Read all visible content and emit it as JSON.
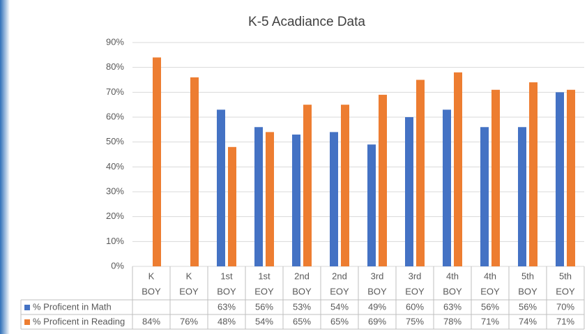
{
  "chart_data": {
    "type": "bar",
    "title": "K-5 Acadiance Data",
    "categories": [
      [
        "K",
        "BOY"
      ],
      [
        "K",
        "EOY"
      ],
      [
        "1st",
        "BOY"
      ],
      [
        "1st",
        "EOY"
      ],
      [
        "2nd",
        "BOY"
      ],
      [
        "2nd",
        "EOY"
      ],
      [
        "3rd",
        "BOY"
      ],
      [
        "3rd",
        "EOY"
      ],
      [
        "4th",
        "BOY"
      ],
      [
        "4th",
        "EOY"
      ],
      [
        "5th",
        "BOY"
      ],
      [
        "5th",
        "EOY"
      ]
    ],
    "series": [
      {
        "name": "% Proficent in Math",
        "color": "#4472c4",
        "values": [
          null,
          null,
          63,
          56,
          53,
          54,
          49,
          60,
          63,
          56,
          56,
          70
        ],
        "value_labels": [
          null,
          null,
          "63%",
          "56%",
          "53%",
          "54%",
          "49%",
          "60%",
          "63%",
          "56%",
          "56%",
          "70%"
        ]
      },
      {
        "name": "% Proficent in Reading",
        "color": "#ed7d31",
        "values": [
          84,
          76,
          48,
          54,
          65,
          65,
          69,
          75,
          78,
          71,
          74,
          71
        ],
        "value_labels": [
          "84%",
          "76%",
          "48%",
          "54%",
          "65%",
          "65%",
          "69%",
          "75%",
          "78%",
          "71%",
          "74%",
          "71%"
        ]
      }
    ],
    "ylim": [
      0,
      90
    ],
    "yticks": [
      {
        "value": 0,
        "label": "0%"
      },
      {
        "value": 10,
        "label": "10%"
      },
      {
        "value": 20,
        "label": "20%"
      },
      {
        "value": 30,
        "label": "30%"
      },
      {
        "value": 40,
        "label": "40%"
      },
      {
        "value": 50,
        "label": "50%"
      },
      {
        "value": 60,
        "label": "60%"
      },
      {
        "value": 70,
        "label": "70%"
      },
      {
        "value": 80,
        "label": "80%"
      },
      {
        "value": 90,
        "label": "90%"
      }
    ],
    "grid": true
  }
}
